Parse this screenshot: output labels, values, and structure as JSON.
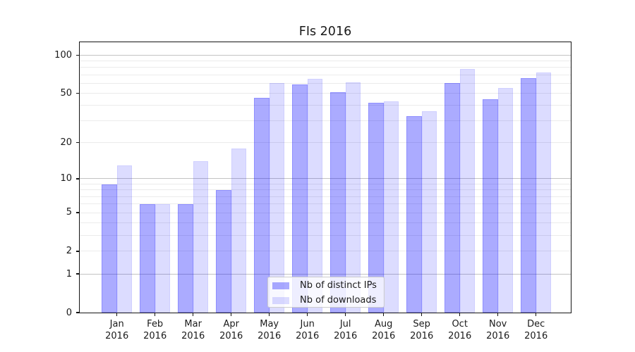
{
  "chart_data": {
    "type": "bar",
    "title": "FIs 2016",
    "categories": [
      "Jan",
      "Feb",
      "Mar",
      "Apr",
      "May",
      "Jun",
      "Jul",
      "Aug",
      "Sep",
      "Oct",
      "Nov",
      "Dec"
    ],
    "category_year": "2016",
    "series": [
      {
        "name": "Nb of distinct IPs",
        "color": "rgba(0,0,255,0.33)",
        "values": [
          9,
          6,
          6,
          8,
          46,
          59,
          51,
          42,
          33,
          60,
          45,
          66
        ]
      },
      {
        "name": "Nb of downloads",
        "color": "rgba(0,0,255,0.137)",
        "values": [
          13,
          6,
          14,
          18,
          60,
          65,
          61,
          43,
          36,
          78,
          55,
          73
        ]
      }
    ],
    "xlabel": "",
    "ylabel": "",
    "y_scale": "log10(1+value)",
    "ylim": [
      0,
      127
    ],
    "y_tick_labels": [
      "0",
      "1",
      "2",
      "5",
      "10",
      "20",
      "50",
      "100"
    ],
    "y_tick_values": [
      0,
      1,
      2,
      5,
      10,
      20,
      50,
      100
    ],
    "grid": "on",
    "major_grid_values": [
      1,
      10,
      100
    ],
    "minor_grid_values": [
      2,
      3,
      4,
      5,
      6,
      7,
      8,
      9,
      20,
      30,
      40,
      50,
      60,
      70,
      80,
      90
    ],
    "legend_position": "lower center",
    "colors": {
      "bar_dark": "rgba(0,0,255,0.33)",
      "bar_light": "rgba(0,0,255,0.137)",
      "grid_major": "#c3c3c3",
      "grid_minor": "#ebebeb",
      "text": "#1a1a1a"
    }
  }
}
